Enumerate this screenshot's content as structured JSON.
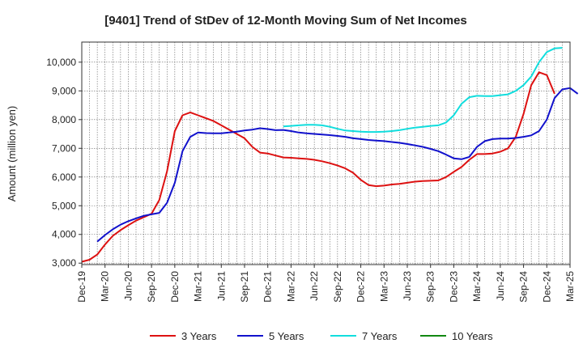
{
  "chart_data": {
    "type": "line",
    "title": "[9401]  Trend of StDev of 12-Month Moving Sum of Net Incomes",
    "xlabel": "",
    "ylabel": "Amount (million yen)",
    "ylim": [
      2950,
      10700
    ],
    "xlim": [
      "2019-12",
      "2025-03"
    ],
    "grid": true,
    "legend_position": "bottom",
    "x_ticks": [
      "Dec-19",
      "Mar-20",
      "Jun-20",
      "Sep-20",
      "Dec-20",
      "Mar-21",
      "Jun-21",
      "Sep-21",
      "Dec-21",
      "Mar-22",
      "Jun-22",
      "Sep-22",
      "Dec-22",
      "Mar-23",
      "Jun-23",
      "Sep-23",
      "Dec-23",
      "Mar-24",
      "Jun-24",
      "Sep-24",
      "Dec-24",
      "Mar-25"
    ],
    "y_ticks": [
      {
        "value": 3000,
        "label": "3,000"
      },
      {
        "value": 4000,
        "label": "4,000"
      },
      {
        "value": 5000,
        "label": "5,000"
      },
      {
        "value": 6000,
        "label": "6,000"
      },
      {
        "value": 7000,
        "label": "7,000"
      },
      {
        "value": 8000,
        "label": "8,000"
      },
      {
        "value": 9000,
        "label": "9,000"
      },
      {
        "value": 10000,
        "label": "10,000"
      }
    ],
    "series": [
      {
        "name": "3 Years",
        "color": "#dd1111",
        "start": "2019-12",
        "values": [
          3050,
          3120,
          3300,
          3650,
          3950,
          4150,
          4320,
          4480,
          4600,
          4720,
          5200,
          6200,
          7600,
          8150,
          8250,
          8150,
          8050,
          7950,
          7800,
          7650,
          7500,
          7350,
          7050,
          6850,
          6820,
          6750,
          6680,
          6670,
          6650,
          6630,
          6600,
          6550,
          6480,
          6400,
          6300,
          6150,
          5900,
          5720,
          5680,
          5700,
          5740,
          5760,
          5800,
          5840,
          5860,
          5870,
          5880,
          6000,
          6180,
          6350,
          6600,
          6800,
          6800,
          6820,
          6880,
          7000,
          7400,
          8200,
          9200,
          9650,
          9550,
          8900
        ]
      },
      {
        "name": "5 Years",
        "color": "#1111cc",
        "start": "2020-02",
        "values": [
          3750,
          3980,
          4180,
          4340,
          4460,
          4560,
          4650,
          4700,
          4750,
          5100,
          5800,
          6900,
          7400,
          7550,
          7530,
          7520,
          7520,
          7550,
          7580,
          7620,
          7650,
          7700,
          7670,
          7630,
          7640,
          7600,
          7550,
          7520,
          7500,
          7480,
          7460,
          7430,
          7400,
          7350,
          7320,
          7290,
          7270,
          7250,
          7220,
          7190,
          7150,
          7100,
          7050,
          6980,
          6900,
          6780,
          6650,
          6620,
          6700,
          7050,
          7250,
          7320,
          7340,
          7340,
          7360,
          7400,
          7450,
          7600,
          8000,
          8750,
          9050,
          9100,
          8900
        ]
      },
      {
        "name": "7 Years",
        "color": "#11dddd",
        "start": "2022-02",
        "values": [
          7760,
          7780,
          7800,
          7820,
          7820,
          7800,
          7750,
          7680,
          7620,
          7600,
          7580,
          7570,
          7570,
          7580,
          7600,
          7630,
          7680,
          7720,
          7750,
          7780,
          7800,
          7900,
          8150,
          8550,
          8780,
          8830,
          8820,
          8820,
          8850,
          8880,
          9000,
          9200,
          9500,
          10000,
          10350,
          10480,
          10500
        ]
      },
      {
        "name": "10 Years",
        "color": "#118811",
        "start": "2019-12",
        "values": []
      }
    ]
  }
}
